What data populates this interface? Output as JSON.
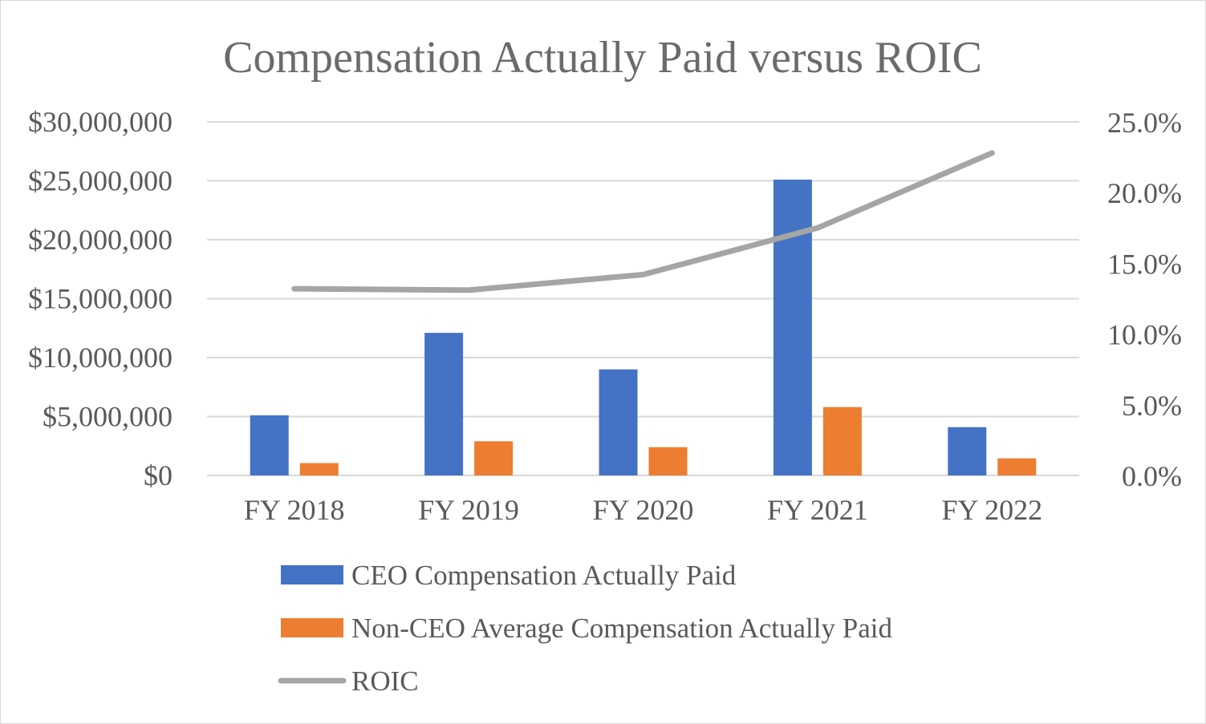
{
  "chart_data": {
    "type": "bar",
    "title": "Compensation Actually Paid versus ROIC",
    "categories": [
      "FY 2018",
      "FY 2019",
      "FY 2020",
      "FY 2021",
      "FY 2022"
    ],
    "y_left": {
      "min": 0,
      "max": 30000000,
      "step": 5000000,
      "tick_labels": [
        "$0",
        "$5,000,000",
        "$10,000,000",
        "$15,000,000",
        "$20,000,000",
        "$25,000,000",
        "$30,000,000"
      ]
    },
    "y_right": {
      "min": 0,
      "max": 0.25,
      "step": 0.05,
      "tick_labels": [
        "0.0%",
        "5.0%",
        "10.0%",
        "15.0%",
        "20.0%",
        "25.0%"
      ]
    },
    "grid": true,
    "legend_position": "bottom",
    "series": [
      {
        "name": "CEO Compensation Actually Paid",
        "type": "bar",
        "axis": "left",
        "color": "#4472C4",
        "values": [
          5100000,
          12100000,
          9000000,
          25100000,
          4100000
        ]
      },
      {
        "name": "Non-CEO Average Compensation Actually Paid",
        "type": "bar",
        "axis": "left",
        "color": "#ED7D31",
        "values": [
          1050000,
          2900000,
          2400000,
          5800000,
          1450000
        ]
      },
      {
        "name": "ROIC",
        "type": "line",
        "axis": "right",
        "color": "#A5A5A5",
        "values": [
          0.132,
          0.131,
          0.142,
          0.175,
          0.228
        ]
      }
    ]
  }
}
